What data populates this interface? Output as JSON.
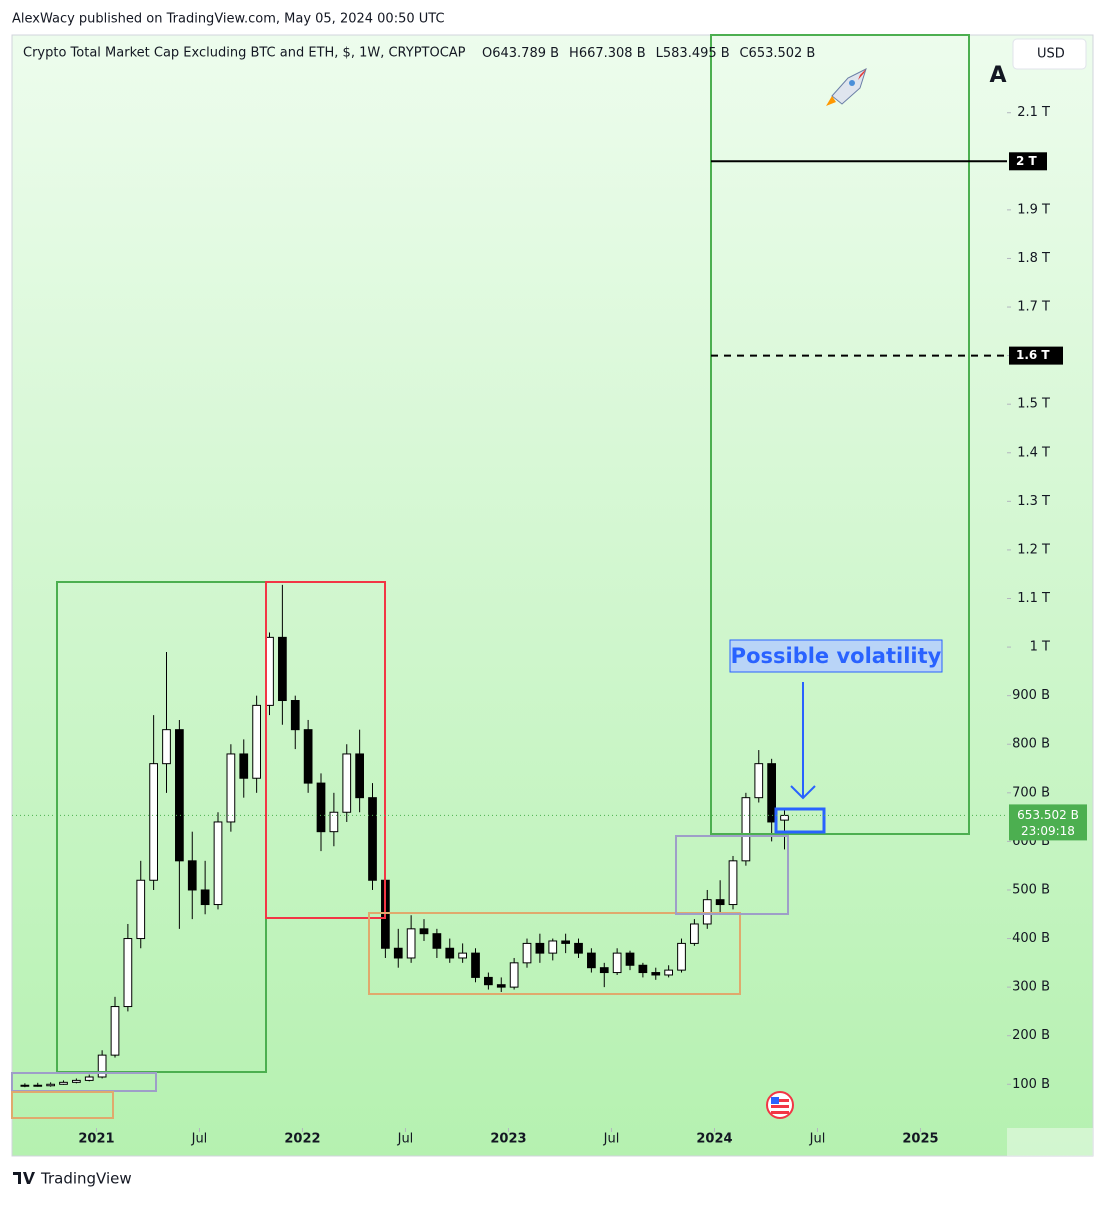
{
  "header": {
    "publisher": "AlexWacy published on TradingView.com, May 05, 2024 00:50 UTC"
  },
  "chart_data": {
    "type": "candlestick",
    "title": "Crypto Total Market Cap Excluding BTC and ETH, $, 1W, CRYPTOCAP",
    "ohlc_labels": [
      "O643.789 B",
      "H667.308 B",
      "L583.495 B",
      "C653.502 B"
    ],
    "currency": "USD",
    "scale_mode": "A",
    "x": [
      2020.6525,
      2020.715,
      2020.7775,
      2020.84,
      2020.9025,
      2020.965,
      2021.0275,
      2021.09,
      2021.1525,
      2021.215,
      2021.2775,
      2021.34,
      2021.4025,
      2021.465,
      2021.5275,
      2021.59,
      2021.6525,
      2021.715,
      2021.7775,
      2021.84,
      2021.9025,
      2021.965,
      2022.0275,
      2022.09,
      2022.1525,
      2022.215,
      2022.2775,
      2022.34,
      2022.4025,
      2022.465,
      2022.5275,
      2022.59,
      2022.6525,
      2022.715,
      2022.7775,
      2022.84,
      2022.9025,
      2022.965,
      2023.0275,
      2023.09,
      2023.1525,
      2023.215,
      2023.2775,
      2023.34,
      2023.4025,
      2023.465,
      2023.5275,
      2023.59,
      2023.6525,
      2023.715,
      2023.7775,
      2023.84,
      2023.9025,
      2023.965,
      2024.0275,
      2024.09,
      2024.1525,
      2024.215,
      2024.2775,
      2024.34
    ],
    "open": [
      96,
      98,
      97,
      100,
      104,
      108,
      115,
      160,
      260,
      400,
      520,
      760,
      830,
      560,
      500,
      470,
      640,
      780,
      730,
      880,
      1020,
      890,
      830,
      720,
      620,
      660,
      780,
      690,
      520,
      380,
      360,
      420,
      410,
      380,
      360,
      370,
      320,
      305,
      300,
      350,
      390,
      370,
      395,
      390,
      370,
      340,
      330,
      370,
      345,
      330,
      325,
      335,
      390,
      430,
      480,
      470,
      560,
      690,
      760,
      643.789
    ],
    "high": [
      102,
      103,
      104,
      108,
      112,
      120,
      170,
      280,
      430,
      560,
      860,
      990,
      850,
      620,
      560,
      660,
      800,
      810,
      900,
      1030,
      1128,
      900,
      850,
      740,
      700,
      800,
      830,
      720,
      560,
      420,
      448,
      440,
      420,
      400,
      390,
      380,
      330,
      320,
      360,
      400,
      410,
      400,
      410,
      400,
      380,
      350,
      380,
      375,
      350,
      340,
      345,
      400,
      440,
      500,
      520,
      570,
      700,
      788,
      770,
      667.308
    ],
    "low": [
      94,
      95,
      95,
      99,
      102,
      106,
      112,
      155,
      250,
      380,
      500,
      700,
      420,
      440,
      450,
      460,
      620,
      690,
      700,
      860,
      840,
      790,
      700,
      580,
      590,
      640,
      660,
      500,
      360,
      340,
      350,
      395,
      360,
      350,
      350,
      310,
      295,
      290,
      295,
      340,
      350,
      355,
      370,
      360,
      330,
      300,
      325,
      335,
      320,
      315,
      320,
      330,
      385,
      420,
      450,
      460,
      550,
      680,
      600,
      583.495
    ],
    "close": [
      98,
      97,
      100,
      104,
      108,
      115,
      160,
      260,
      400,
      520,
      760,
      830,
      560,
      500,
      470,
      640,
      780,
      730,
      880,
      1020,
      890,
      830,
      720,
      620,
      660,
      780,
      690,
      520,
      380,
      360,
      420,
      410,
      380,
      360,
      370,
      320,
      305,
      300,
      350,
      390,
      370,
      395,
      390,
      370,
      340,
      330,
      370,
      345,
      330,
      325,
      335,
      390,
      430,
      480,
      470,
      560,
      690,
      760,
      640,
      653.502
    ],
    "up_color": "#ffffff",
    "down_color": "#000000",
    "wick_color": "#000000",
    "xlim": [
      2020.59,
      2025.42
    ],
    "xticks": [
      {
        "value": 2021,
        "label": "2021"
      },
      {
        "value": 2021.5,
        "label": "Jul"
      },
      {
        "value": 2022,
        "label": "2022"
      },
      {
        "value": 2022.5,
        "label": "Jul"
      },
      {
        "value": 2023,
        "label": "2023"
      },
      {
        "value": 2023.5,
        "label": "Jul"
      },
      {
        "value": 2024,
        "label": "2024"
      },
      {
        "value": 2024.5,
        "label": "Jul"
      },
      {
        "value": 2025,
        "label": "2025"
      }
    ],
    "ylim": [
      10,
      2260
    ],
    "yticks": [
      {
        "value": 100,
        "label": "100 B"
      },
      {
        "value": 200,
        "label": "200 B"
      },
      {
        "value": 300,
        "label": "300 B"
      },
      {
        "value": 400,
        "label": "400 B"
      },
      {
        "value": 500,
        "label": "500 B"
      },
      {
        "value": 600,
        "label": "600 B"
      },
      {
        "value": 700,
        "label": "700 B"
      },
      {
        "value": 800,
        "label": "800 B"
      },
      {
        "value": 900,
        "label": "900 B"
      },
      {
        "value": 1000,
        "label": "1 T"
      },
      {
        "value": 1100,
        "label": "1.1 T"
      },
      {
        "value": 1200,
        "label": "1.2 T"
      },
      {
        "value": 1300,
        "label": "1.3 T"
      },
      {
        "value": 1400,
        "label": "1.4 T"
      },
      {
        "value": 1500,
        "label": "1.5 T"
      },
      {
        "value": 1600,
        "label": "1.6 T"
      },
      {
        "value": 1700,
        "label": "1.7 T"
      },
      {
        "value": 1800,
        "label": "1.8 T"
      },
      {
        "value": 1900,
        "label": "1.9 T"
      },
      {
        "value": 2100,
        "label": "2.1 T"
      }
    ],
    "levels": [
      {
        "value": 2000,
        "label": "2 T",
        "style": "solid"
      },
      {
        "value": 1600,
        "label": "1.6 T",
        "style": "dashed"
      }
    ],
    "last_price": {
      "value": 653.502,
      "label": "653.502 B",
      "countdown": "23:09:18",
      "color": "#4caf50"
    },
    "annotation": "Possible volatility"
  },
  "footer": {
    "brand": "TradingView"
  }
}
